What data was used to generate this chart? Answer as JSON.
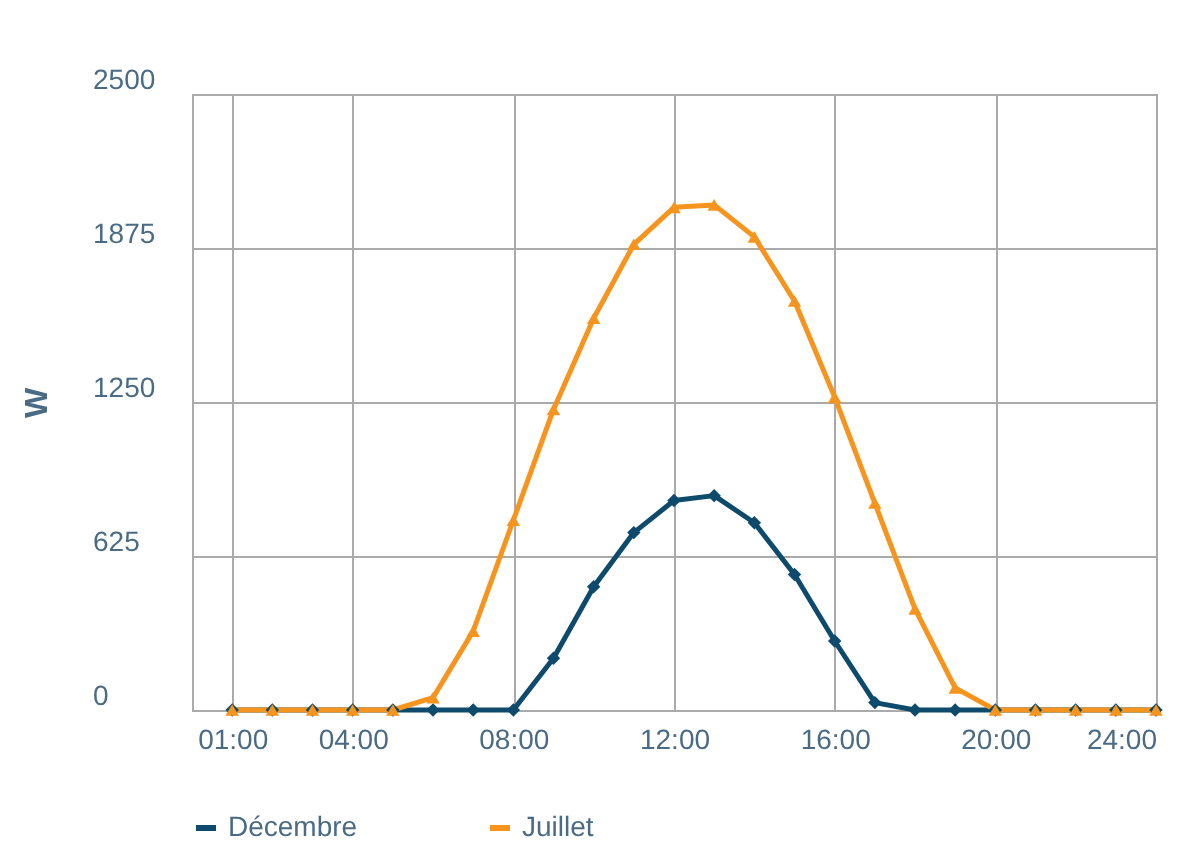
{
  "chart_data": {
    "type": "line",
    "ylabel": "W",
    "x": [
      1,
      2,
      3,
      4,
      5,
      6,
      7,
      8,
      9,
      10,
      11,
      12,
      13,
      14,
      15,
      16,
      17,
      18,
      19,
      20,
      21,
      22,
      23,
      24
    ],
    "xlim": [
      0,
      24
    ],
    "xticks": [
      {
        "value": 1,
        "label": "01:00"
      },
      {
        "value": 4,
        "label": "04:00"
      },
      {
        "value": 8,
        "label": "08:00"
      },
      {
        "value": 12,
        "label": "12:00"
      },
      {
        "value": 16,
        "label": "16:00"
      },
      {
        "value": 20,
        "label": "20:00"
      },
      {
        "value": 24,
        "label": "24:00"
      }
    ],
    "ylim": [
      0,
      2500
    ],
    "yticks": [
      0,
      625,
      1250,
      1875,
      2500
    ],
    "grid": true,
    "legend": "bottom",
    "series": [
      {
        "name": "Décembre",
        "color": "#0d4a6b",
        "marker": "diamond",
        "values": [
          0,
          0,
          0,
          0,
          0,
          0,
          0,
          0,
          210,
          500,
          720,
          850,
          870,
          760,
          550,
          280,
          30,
          0,
          0,
          0,
          0,
          0,
          0,
          0
        ]
      },
      {
        "name": "Juillet",
        "color": "#f7941d",
        "marker": "triangle",
        "values": [
          0,
          0,
          0,
          0,
          0,
          50,
          320,
          770,
          1220,
          1590,
          1890,
          2040,
          2050,
          1920,
          1660,
          1270,
          840,
          410,
          90,
          0,
          0,
          0,
          0,
          0
        ]
      }
    ]
  }
}
